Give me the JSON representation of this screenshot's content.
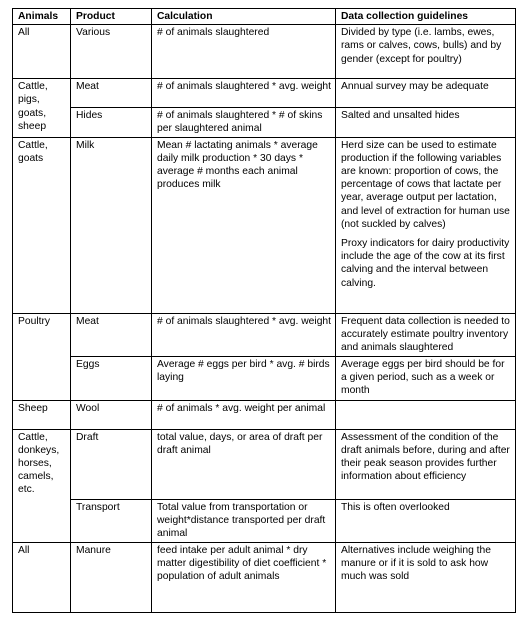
{
  "headers": [
    "Animals",
    "Product",
    "Calculation",
    "Data collection guidelines"
  ],
  "rows": [
    {
      "animal": "All",
      "product": "Various",
      "calculation": "# of animals slaughtered",
      "guidelines": "Divided by type (i.e. lambs, ewes, rams or calves, cows, bulls) and by gender (except for poultry)"
    },
    {
      "animal": "Cattle, pigs, goats, sheep",
      "product": "Meat",
      "calculation": "# of animals slaughtered * avg. weight",
      "guidelines": "Annual survey may be adequate"
    },
    {
      "product": "Hides",
      "calculation": "# of animals slaughtered * # of skins per slaughtered animal",
      "guidelines": "Salted and unsalted hides"
    },
    {
      "animal": "Cattle, goats",
      "product": "Milk",
      "calculation": "Mean # lactating animals * average daily milk production * 30 days * average # months each animal produces milk",
      "guidelines": "Herd size can be used to estimate production if the following variables are known: proportion of cows, the percentage of cows that lactate per year, average output per lactation, and level of extraction for human use (not suckled by calves)",
      "guidelines_2": "Proxy indicators for dairy productivity include the age of the cow at its first calving and the interval between calving."
    },
    {
      "animal": "Poultry",
      "product": "Meat",
      "calculation": "# of animals slaughtered * avg. weight",
      "guidelines": "Frequent data collection is needed to accurately estimate poultry inventory and animals slaughtered"
    },
    {
      "product": "Eggs",
      "calculation": "Average # eggs per bird * avg. # birds laying",
      "guidelines": "Average eggs per bird should be for a given period, such as a week or month"
    },
    {
      "animal": "Sheep",
      "product": "Wool",
      "calculation": "# of animals * avg. weight per animal",
      "guidelines": ""
    },
    {
      "animal": "Cattle, donkeys, horses, camels, etc.",
      "product": "Draft",
      "calculation": "total value, days, or area of draft per draft animal",
      "guidelines": "Assessment of the condition of the draft animals before, during and after their peak season provides further information about efficiency"
    },
    {
      "product": "Transport",
      "calculation": "Total value from transportation or weight*distance transported per draft animal",
      "guidelines": "This is often overlooked"
    },
    {
      "animal": "All",
      "product": "Manure",
      "calculation": "feed intake per adult animal * dry matter digestibility of diet coefficient * population of adult animals",
      "guidelines": "Alternatives include weighing the manure or if it is sold to ask how much was sold"
    }
  ]
}
